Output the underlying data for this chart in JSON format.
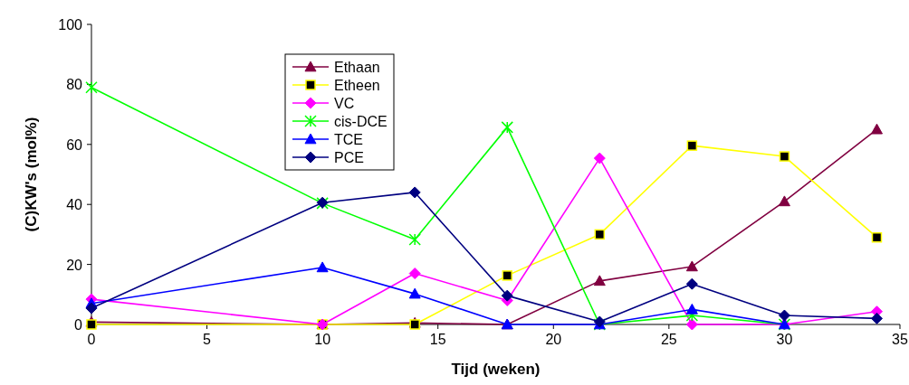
{
  "chart_data": {
    "type": "line",
    "xlabel": "Tijd (weken)",
    "ylabel": "(C)KW's (mol%)",
    "x": [
      0,
      10,
      14,
      18,
      22,
      26,
      30,
      34
    ],
    "xlim": [
      0,
      35
    ],
    "xticks": [
      0,
      5,
      10,
      15,
      20,
      25,
      30,
      35
    ],
    "ylim": [
      0,
      100
    ],
    "yticks": [
      0,
      20,
      40,
      60,
      80,
      100
    ],
    "legend": "top left",
    "grid": false,
    "series": [
      {
        "name": "Ethaan",
        "color": "#800040",
        "marker": "triangle",
        "values": [
          0.8,
          0,
          0.5,
          0,
          14.5,
          19.3,
          41,
          65
        ]
      },
      {
        "name": "Etheen",
        "color": "#ffff00",
        "marker": "square",
        "values": [
          0,
          0,
          0,
          16.3,
          30,
          59.6,
          56,
          29
        ]
      },
      {
        "name": "VC",
        "color": "#ff00ff",
        "marker": "diamond",
        "values": [
          8.4,
          0,
          17,
          8,
          55.4,
          0,
          0,
          4.3
        ]
      },
      {
        "name": "cis-DCE",
        "color": "#00ff00",
        "marker": "cross",
        "values": [
          79,
          40.4,
          28.3,
          65.7,
          0,
          3,
          0,
          null
        ]
      },
      {
        "name": "TCE",
        "color": "#0000ff",
        "marker": "triangle",
        "values": [
          7,
          19,
          10.2,
          0,
          0,
          5,
          0,
          null
        ]
      },
      {
        "name": "PCE",
        "color": "#000080",
        "marker": "diamond",
        "values": [
          5.4,
          40.6,
          44,
          9.6,
          0.9,
          13.5,
          3,
          2
        ]
      }
    ]
  }
}
